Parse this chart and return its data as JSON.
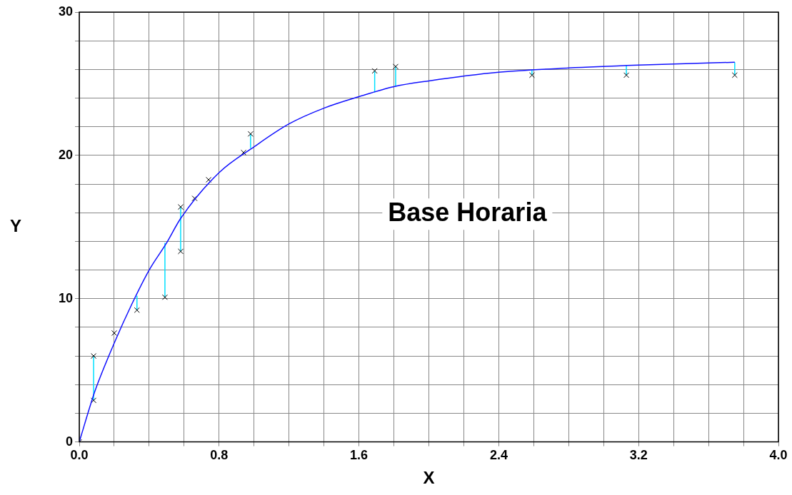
{
  "chart_data": {
    "type": "scatter",
    "xlabel": "X",
    "ylabel": "Y",
    "annotations": [
      "Base Horaria"
    ],
    "xlim": [
      0,
      4
    ],
    "ylim": [
      0,
      30
    ],
    "xticks": [
      {
        "value": 0,
        "label": "0.0"
      },
      {
        "value": 0.2,
        "label": null
      },
      {
        "value": 0.4,
        "label": null
      },
      {
        "value": 0.6,
        "label": null
      },
      {
        "value": 0.8,
        "label": "0.8"
      },
      {
        "value": 1.0,
        "label": null
      },
      {
        "value": 1.2,
        "label": null
      },
      {
        "value": 1.4,
        "label": null
      },
      {
        "value": 1.6,
        "label": "1.6"
      },
      {
        "value": 1.8,
        "label": null
      },
      {
        "value": 2.0,
        "label": null
      },
      {
        "value": 2.2,
        "label": null
      },
      {
        "value": 2.4,
        "label": "2.4"
      },
      {
        "value": 2.6,
        "label": null
      },
      {
        "value": 2.8,
        "label": null
      },
      {
        "value": 3.0,
        "label": null
      },
      {
        "value": 3.2,
        "label": "3.2"
      },
      {
        "value": 3.4,
        "label": null
      },
      {
        "value": 3.6,
        "label": null
      },
      {
        "value": 3.8,
        "label": null
      },
      {
        "value": 4.0,
        "label": "4.0"
      }
    ],
    "yticks": [
      0,
      {
        "value": 2,
        "label": null
      },
      {
        "value": 4,
        "label": null
      },
      {
        "value": 6,
        "label": null
      },
      {
        "value": 8,
        "label": null
      },
      10,
      {
        "value": 12,
        "label": null
      },
      {
        "value": 14,
        "label": null
      },
      {
        "value": 16,
        "label": null
      },
      {
        "value": 18,
        "label": null
      },
      20,
      {
        "value": 22,
        "label": null
      },
      {
        "value": 24,
        "label": null
      },
      {
        "value": 26,
        "label": null
      },
      {
        "value": 28,
        "label": null
      },
      30
    ],
    "grid": true,
    "legend": false,
    "series": [
      {
        "type": "line",
        "marker": "none",
        "color": "#1010ff",
        "x": [
          0,
          0.08,
          0.1,
          0.2,
          0.3,
          0.4,
          0.5,
          0.58,
          0.8,
          1.0,
          1.2,
          1.4,
          1.6,
          1.8,
          2.0,
          2.4,
          2.8,
          3.2,
          3.6,
          3.75
        ],
        "values": [
          0,
          3.2,
          3.9,
          6.9,
          9.6,
          12.0,
          13.9,
          15.6,
          18.8,
          20.6,
          22.2,
          23.3,
          24.1,
          24.8,
          25.2,
          25.8,
          26.1,
          26.3,
          26.45,
          26.5
        ]
      },
      {
        "type": "scatter",
        "marker": "cross",
        "color": "#000000",
        "x": [
          0,
          0.082,
          0.082,
          0.2,
          0.33,
          0.49,
          0.58,
          0.58,
          0.66,
          0.74,
          0.94,
          0.98,
          1.69,
          1.81,
          2.59,
          3.13,
          3.75
        ],
        "values": [
          0,
          6.0,
          2.9,
          7.6,
          9.2,
          10.1,
          16.4,
          13.3,
          17.0,
          18.3,
          20.2,
          21.5,
          25.9,
          26.2,
          25.6,
          25.6,
          25.6
        ],
        "errors": [
          null,
          [
            3.2,
            6.0
          ],
          [
            2.9,
            3.2
          ],
          null,
          [
            9.2,
            10.2
          ],
          [
            10.1,
            13.9
          ],
          [
            15.6,
            16.4
          ],
          [
            13.3,
            15.6
          ],
          null,
          null,
          null,
          [
            20.5,
            21.5
          ],
          [
            24.4,
            25.9
          ],
          [
            24.8,
            26.2
          ],
          [
            25.6,
            25.95
          ],
          [
            25.6,
            26.3
          ],
          [
            25.6,
            26.5
          ]
        ]
      }
    ]
  }
}
